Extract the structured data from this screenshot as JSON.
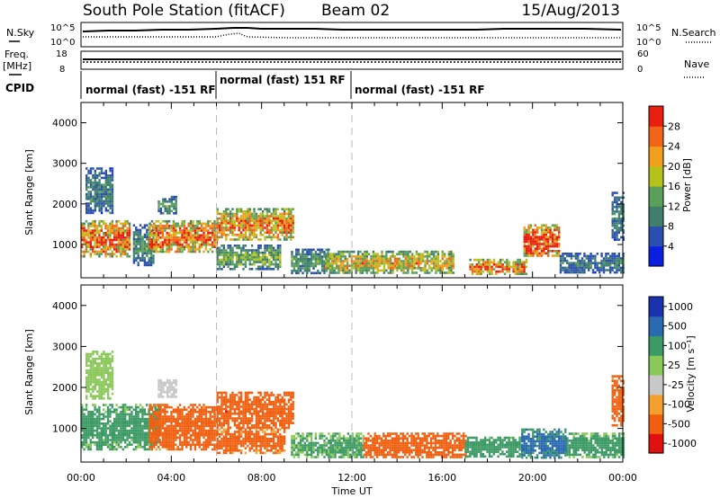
{
  "header": {
    "title": "South Pole Station (fitACF)",
    "beam": "Beam 02",
    "date": "15/Aug/2013"
  },
  "colors": {
    "scale_power": [
      "#0b1fe0",
      "#2a4fb0",
      "#3f7f6c",
      "#5aa05a",
      "#b5c21c",
      "#f0a01c",
      "#f26418",
      "#e81e10"
    ],
    "scale_velocity": [
      "#e01010",
      "#f06010",
      "#f4a030",
      "#c8c8c8",
      "#8ac85a",
      "#3c9a64",
      "#2a6ab0",
      "#1a32b0"
    ],
    "ground_scatter": "#9e9e9e"
  },
  "panels": {
    "nsky": {
      "label": "N.Sky",
      "right_label": "N.Search",
      "left_ticks": [
        "10^5",
        "10^0"
      ],
      "right_ticks": [
        "10^5",
        "10^0"
      ]
    },
    "freq": {
      "label_line1": "Freq.",
      "label_line2": "[MHz]",
      "right_label": "Nave",
      "left_ticks": [
        "18",
        "8"
      ],
      "right_ticks": [
        "60",
        "0"
      ]
    },
    "cpid": {
      "label": "CPID",
      "segments": [
        {
          "text": "normal (fast) -151 RF",
          "start_hour": 0
        },
        {
          "text": "normal (fast) 151 RF",
          "start_hour": 6
        },
        {
          "text": "normal (fast) -151 RF",
          "start_hour": 12
        }
      ]
    },
    "power": {
      "ylabel": "Slant Range [km]",
      "scale_label": "Power [dB]",
      "scale_ticks": [
        "28",
        "24",
        "20",
        "16",
        "12",
        "8",
        "4"
      ]
    },
    "velocity": {
      "ylabel": "Slant Range [km]",
      "scale_label": "Velocity [m s⁻¹]",
      "scale_ticks": [
        "1000",
        "500",
        "100",
        "25",
        "-25",
        "-100",
        "-500",
        "-1000"
      ]
    }
  },
  "xaxis": {
    "label": "Time UT",
    "ticks": [
      "00:00",
      "04:00",
      "08:00",
      "12:00",
      "16:00",
      "20:00",
      "00:00"
    ]
  },
  "chart_data": [
    {
      "type": "heatmap",
      "title": "",
      "xlabel": "Time UT",
      "ylabel": "Slant Range [km]",
      "xlim": [
        0,
        24
      ],
      "ylim": [
        180,
        4500
      ],
      "ytick_values": [
        1000,
        2000,
        3000,
        4000
      ],
      "colorbar_label": "Power [dB]",
      "colorbar_ticks": [
        28,
        24,
        20,
        16,
        12,
        8,
        4
      ],
      "colorbar_range": [
        0,
        32
      ],
      "dashed_vertical_lines_hours": [
        6,
        12
      ],
      "scatter_regions": [
        {
          "t0": 0.0,
          "t1": 2.2,
          "r0": 700,
          "r1": 1600,
          "value": 22
        },
        {
          "t0": 0.2,
          "t1": 1.4,
          "r0": 1750,
          "r1": 2900,
          "value": 8
        },
        {
          "t0": 2.3,
          "t1": 3.2,
          "r0": 500,
          "r1": 1500,
          "value": 10
        },
        {
          "t0": 3.0,
          "t1": 6.0,
          "r0": 800,
          "r1": 1600,
          "value": 22
        },
        {
          "t0": 3.4,
          "t1": 4.2,
          "r0": 1750,
          "r1": 2200,
          "value": 10
        },
        {
          "t0": 6.0,
          "t1": 9.4,
          "r0": 1100,
          "r1": 1900,
          "value": 20
        },
        {
          "t0": 6.0,
          "t1": 8.8,
          "r0": 400,
          "r1": 1000,
          "value": 12
        },
        {
          "t0": 9.3,
          "t1": 11.0,
          "r0": 300,
          "r1": 900,
          "value": 10
        },
        {
          "t0": 10.8,
          "t1": 16.5,
          "r0": 300,
          "r1": 850,
          "value": 17
        },
        {
          "t0": 17.2,
          "t1": 19.7,
          "r0": 280,
          "r1": 650,
          "value": 21
        },
        {
          "t0": 19.6,
          "t1": 21.2,
          "r0": 700,
          "r1": 1500,
          "value": 25
        },
        {
          "t0": 21.2,
          "t1": 24.0,
          "r0": 300,
          "r1": 800,
          "value": 8
        },
        {
          "t0": 23.5,
          "t1": 24.0,
          "r0": 1100,
          "r1": 2300,
          "value": 8
        }
      ]
    },
    {
      "type": "heatmap",
      "title": "",
      "xlabel": "Time UT",
      "ylabel": "Slant Range [km]",
      "xlim": [
        0,
        24
      ],
      "ylim": [
        180,
        4500
      ],
      "ytick_values": [
        1000,
        2000,
        3000,
        4000
      ],
      "colorbar_label": "Velocity [m s⁻¹]",
      "colorbar_ticks": [
        1000,
        500,
        100,
        25,
        -25,
        -100,
        -500,
        -1000
      ],
      "dashed_vertical_lines_hours": [
        6,
        12
      ],
      "scatter_regions": [
        {
          "t0": 0.0,
          "t1": 3.5,
          "r0": 500,
          "r1": 1600,
          "value": 150
        },
        {
          "t0": 0.2,
          "t1": 1.4,
          "r0": 1750,
          "r1": 2900,
          "value": 60
        },
        {
          "t0": 3.0,
          "t1": 6.0,
          "r0": 500,
          "r1": 1600,
          "value": -200
        },
        {
          "t0": 3.4,
          "t1": 4.2,
          "r0": 1750,
          "r1": 2200,
          "value": 0
        },
        {
          "t0": 6.0,
          "t1": 9.4,
          "r0": 1000,
          "r1": 1900,
          "value": -300
        },
        {
          "t0": 6.0,
          "t1": 9.0,
          "r0": 400,
          "r1": 1000,
          "value": -150
        },
        {
          "t0": 9.3,
          "t1": 12.5,
          "r0": 300,
          "r1": 900,
          "value": 120
        },
        {
          "t0": 12.5,
          "t1": 17.0,
          "r0": 300,
          "r1": 900,
          "value": -250
        },
        {
          "t0": 17.0,
          "t1": 19.5,
          "r0": 300,
          "r1": 800,
          "value": 200
        },
        {
          "t0": 19.5,
          "t1": 21.5,
          "r0": 300,
          "r1": 1000,
          "value": 600
        },
        {
          "t0": 21.5,
          "t1": 24.0,
          "r0": 300,
          "r1": 900,
          "value": 150
        },
        {
          "t0": 23.5,
          "t1": 24.0,
          "r0": 1100,
          "r1": 2300,
          "value": -200
        }
      ]
    }
  ]
}
